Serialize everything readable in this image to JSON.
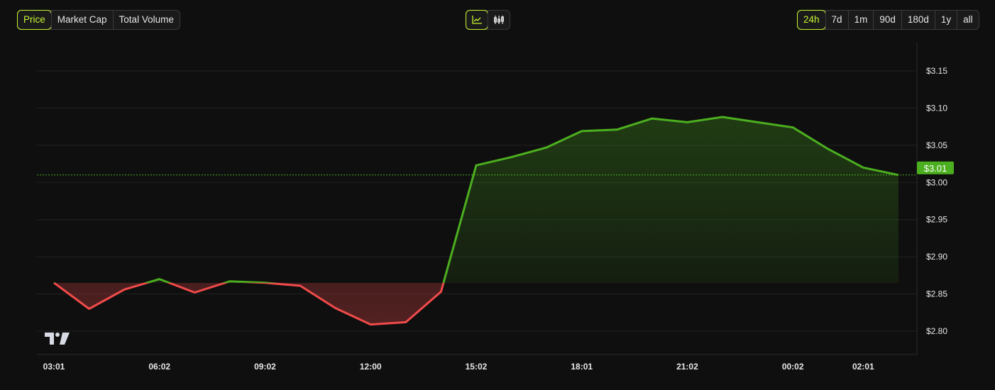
{
  "metric_tabs": [
    {
      "label": "Price",
      "active": true
    },
    {
      "label": "Market Cap",
      "active": false
    },
    {
      "label": "Total Volume",
      "active": false
    }
  ],
  "view_toggle": [
    {
      "icon": "line-chart-icon",
      "active": true
    },
    {
      "icon": "candlestick-icon",
      "active": false
    }
  ],
  "range_tabs": [
    {
      "label": "24h",
      "active": true
    },
    {
      "label": "7d",
      "active": false
    },
    {
      "label": "1m",
      "active": false
    },
    {
      "label": "90d",
      "active": false
    },
    {
      "label": "180d",
      "active": false
    },
    {
      "label": "1y",
      "active": false
    },
    {
      "label": "all",
      "active": false
    }
  ],
  "colors": {
    "up": "#4caf1f",
    "down": "#f04a4a",
    "accent": "#c6f432",
    "background": "#0f0f0f"
  },
  "chart_data": {
    "type": "area",
    "title": "",
    "xlabel": "",
    "ylabel": "",
    "x_tick_labels": [
      {
        "index": 0,
        "label": "03:01"
      },
      {
        "index": 3,
        "label": "06:02"
      },
      {
        "index": 6,
        "label": "09:02"
      },
      {
        "index": 9,
        "label": "12:00"
      },
      {
        "index": 12,
        "label": "15:02"
      },
      {
        "index": 15,
        "label": "18:01"
      },
      {
        "index": 18,
        "label": "21:02"
      },
      {
        "index": 21,
        "label": "00:02"
      },
      {
        "index": 23,
        "label": "02:01"
      }
    ],
    "values": [
      2.865,
      2.83,
      2.856,
      2.87,
      2.852,
      2.867,
      2.865,
      2.861,
      2.831,
      2.809,
      2.812,
      2.853,
      3.023,
      3.034,
      3.047,
      3.069,
      3.071,
      3.086,
      3.081,
      3.088,
      3.081,
      3.074,
      3.045,
      3.02,
      3.01
    ],
    "baseline": 2.865,
    "ylim": [
      2.768,
      3.18
    ],
    "y_ticks": [
      "$3.15",
      "$3.10",
      "$3.05",
      "$3.00",
      "$2.95",
      "$2.90",
      "$2.85",
      "$2.80"
    ],
    "y_tick_values": [
      3.15,
      3.1,
      3.05,
      3.0,
      2.95,
      2.9,
      2.85,
      2.8
    ],
    "current_price": 3.01,
    "current_price_label": "$3.01",
    "grid": true,
    "logo": "TV"
  }
}
